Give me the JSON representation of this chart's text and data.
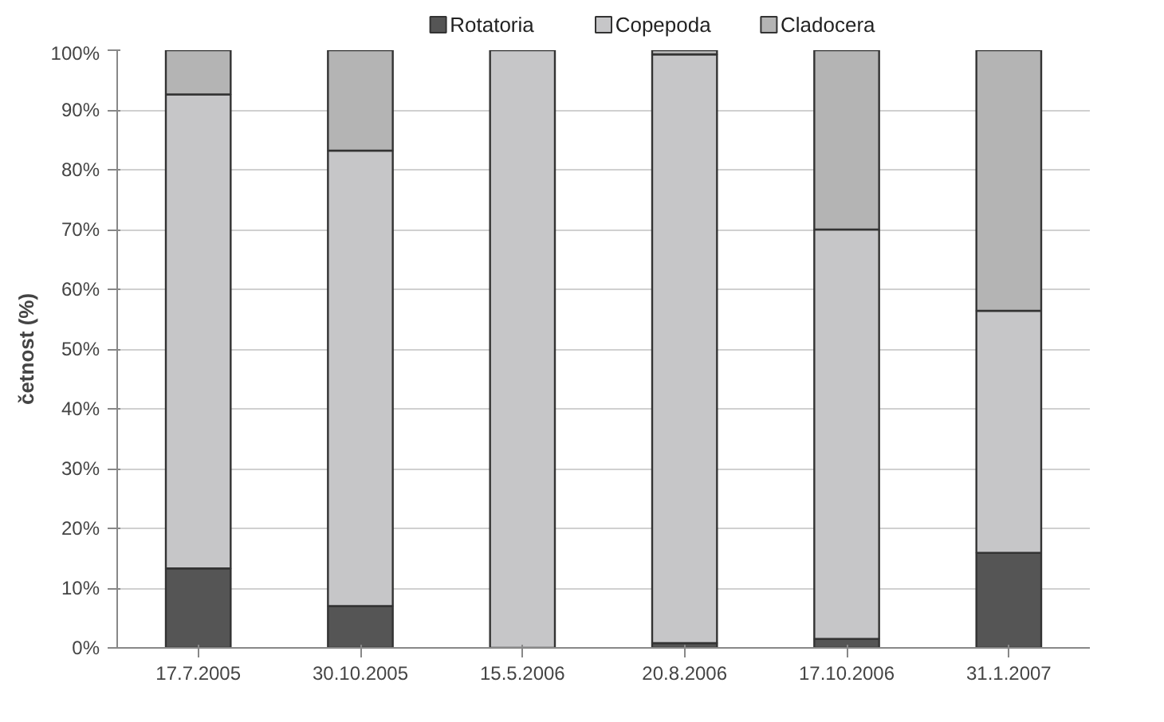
{
  "chart_data": {
    "type": "bar",
    "stacked": true,
    "ylabel": "četnost (%)",
    "categories": [
      "17.7.2005",
      "30.10.2005",
      "15.5.2006",
      "20.8.2006",
      "17.10.2006",
      "31.1.2007"
    ],
    "series": [
      {
        "name": "Rotatoria",
        "color": "#555555",
        "values": [
          13.3,
          7.0,
          0,
          0.8,
          1.5,
          15.9
        ]
      },
      {
        "name": "Copepoda",
        "color": "#c6c6c8",
        "values": [
          79.3,
          76.2,
          100,
          98.5,
          68.5,
          40.5
        ]
      },
      {
        "name": "Cladocera",
        "color": "#b4b4b4",
        "values": [
          7.4,
          16.8,
          0,
          0.7,
          30.0,
          43.6
        ]
      }
    ],
    "ylim": [
      0,
      100
    ],
    "yticks": [
      {
        "value": 0,
        "label": "0%"
      },
      {
        "value": 10,
        "label": "10%"
      },
      {
        "value": 20,
        "label": "20%"
      },
      {
        "value": 30,
        "label": "30%"
      },
      {
        "value": 40,
        "label": "40%"
      },
      {
        "value": 50,
        "label": "50%"
      },
      {
        "value": 60,
        "label": "60%"
      },
      {
        "value": 70,
        "label": "70%"
      },
      {
        "value": 80,
        "label": "80%"
      },
      {
        "value": 90,
        "label": "90%"
      },
      {
        "value": 100,
        "label": "100%"
      }
    ],
    "grid": "y",
    "legend": "top"
  }
}
